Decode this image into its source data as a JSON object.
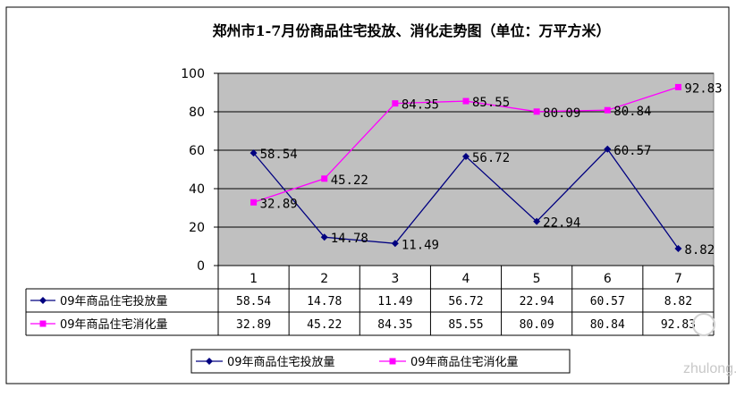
{
  "chart_data": {
    "type": "line",
    "title": "郑州市1-7月份商品住宅投放、消化走势图（单位：万平方米）",
    "categories": [
      "1",
      "2",
      "3",
      "4",
      "5",
      "6",
      "7"
    ],
    "ylim": [
      0,
      100
    ],
    "yticks": [
      "0",
      "20",
      "40",
      "60",
      "80",
      "100"
    ],
    "grid": true,
    "legend_position": "bottom",
    "data_table": true,
    "series": [
      {
        "name": "09年商品住宅投放量",
        "color": "#000080",
        "marker": "diamond",
        "values": [
          58.54,
          14.78,
          11.49,
          56.72,
          22.94,
          60.57,
          8.82
        ],
        "labels": [
          "58.54",
          "14.78",
          "11.49",
          "56.72",
          "22.94",
          "60.57",
          "8.82"
        ]
      },
      {
        "name": "09年商品住宅消化量",
        "color": "#ff00ff",
        "marker": "square",
        "values": [
          32.89,
          45.22,
          84.35,
          85.55,
          80.09,
          80.84,
          92.83
        ],
        "labels": [
          "32.89",
          "45.22",
          "84.35",
          "85.55",
          "80.09",
          "80.84",
          "92.83"
        ]
      }
    ]
  },
  "watermark": "zhulong.com",
  "colors": {
    "plot_bg": "#c0c0c0",
    "grid": "#000000"
  }
}
